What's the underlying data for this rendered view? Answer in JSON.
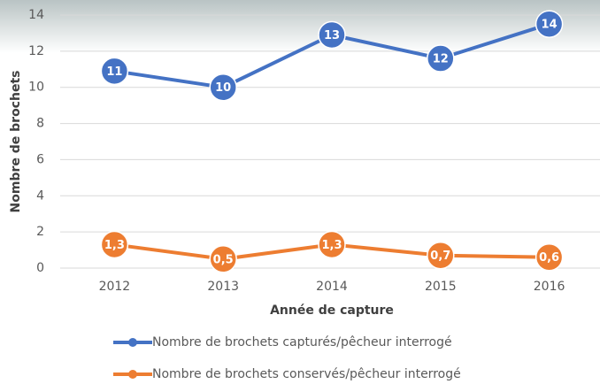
{
  "chart_data": {
    "type": "line",
    "y_label": "Nombre de brochets",
    "x_label": "Année de capture",
    "categories": [
      "2012",
      "2013",
      "2014",
      "2015",
      "2016"
    ],
    "series": [
      {
        "name": "Nombre de brochets capturés/pêcheur interrogé",
        "color": "#4472c4",
        "values": [
          10.9,
          10,
          12.9,
          11.6,
          13.5
        ],
        "value_labels": [
          "11",
          "10",
          "13",
          "12",
          "14"
        ]
      },
      {
        "name": "Nombre de brochets conservés/pêcheur interrogé",
        "color": "#ed7d31",
        "values": [
          1.3,
          0.5,
          1.3,
          0.7,
          0.6
        ],
        "value_labels": [
          "1,3",
          "0,5",
          "1,3",
          "0,7",
          "0,6"
        ]
      }
    ],
    "ylim": [
      0,
      14
    ],
    "yticks": [
      0,
      2,
      4,
      6,
      8,
      10,
      12,
      14
    ],
    "grid": true
  }
}
